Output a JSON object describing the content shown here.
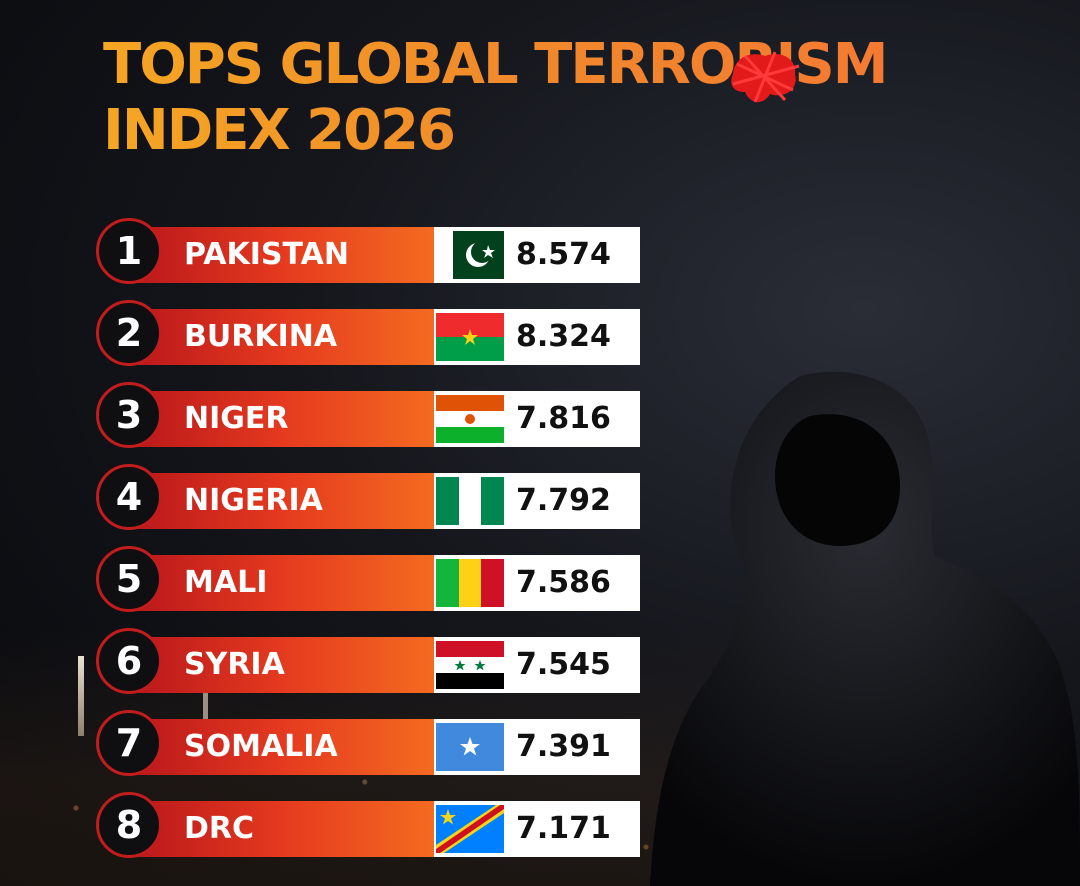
{
  "title": {
    "line1": "TOPS GLOBAL TERRORISM",
    "line2": "INDEX 2026"
  },
  "accent_color": "#f5a623",
  "bar_colors": [
    "#b9171b",
    "#f46b20",
    "#fbc046"
  ],
  "rankings": [
    {
      "rank": "1",
      "country": "PAKISTAN",
      "value": "8.574",
      "flag": "pakistan-flag-icon"
    },
    {
      "rank": "2",
      "country": "BURKINA",
      "value": "8.324",
      "flag": "burkina-faso-flag-icon"
    },
    {
      "rank": "3",
      "country": "NIGER",
      "value": "7.816",
      "flag": "niger-flag-icon"
    },
    {
      "rank": "4",
      "country": "NIGERIA",
      "value": "7.792",
      "flag": "nigeria-flag-icon"
    },
    {
      "rank": "5",
      "country": "MALI",
      "value": "7.586",
      "flag": "mali-flag-icon"
    },
    {
      "rank": "6",
      "country": "SYRIA",
      "value": "7.545",
      "flag": "syria-flag-icon"
    },
    {
      "rank": "7",
      "country": "SOMALIA",
      "value": "7.391",
      "flag": "somalia-flag-icon"
    },
    {
      "rank": "8",
      "country": "DRC",
      "value": "7.171",
      "flag": "drc-flag-icon"
    }
  ]
}
